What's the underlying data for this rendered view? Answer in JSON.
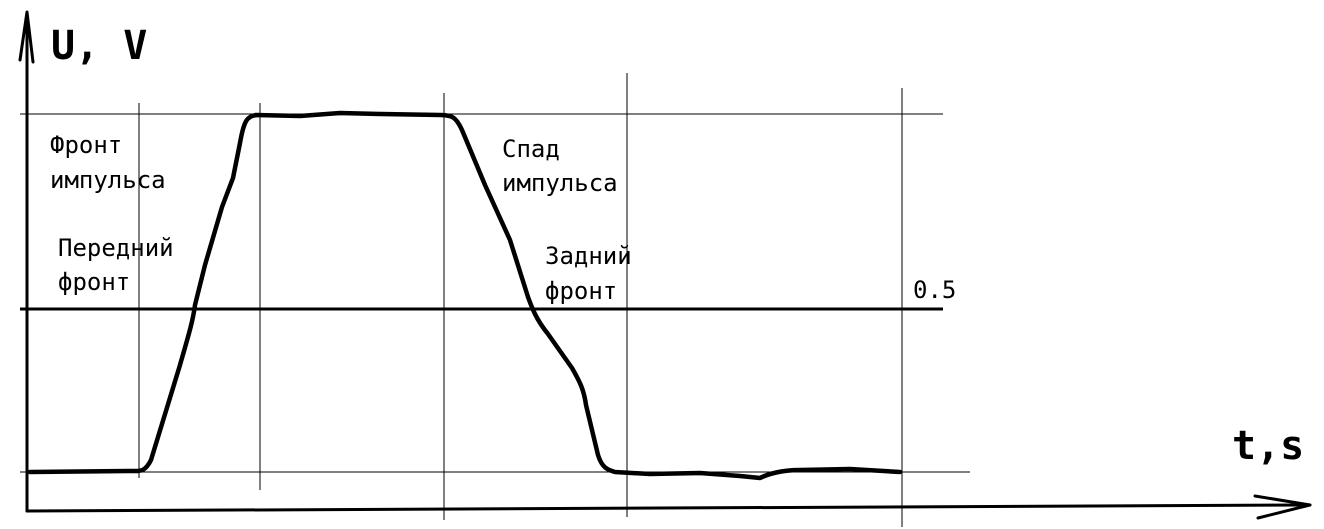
{
  "axes": {
    "y_label": "U, V",
    "x_label": "t,s"
  },
  "labels": {
    "pulse_front": [
      "Фронт",
      "импульса"
    ],
    "leading_edge": [
      "Передний",
      "фронт"
    ],
    "pulse_decay": [
      "Спад",
      "импульса"
    ],
    "trailing_edge": [
      "Задний",
      "фронт"
    ],
    "half_level": "0.5"
  }
}
